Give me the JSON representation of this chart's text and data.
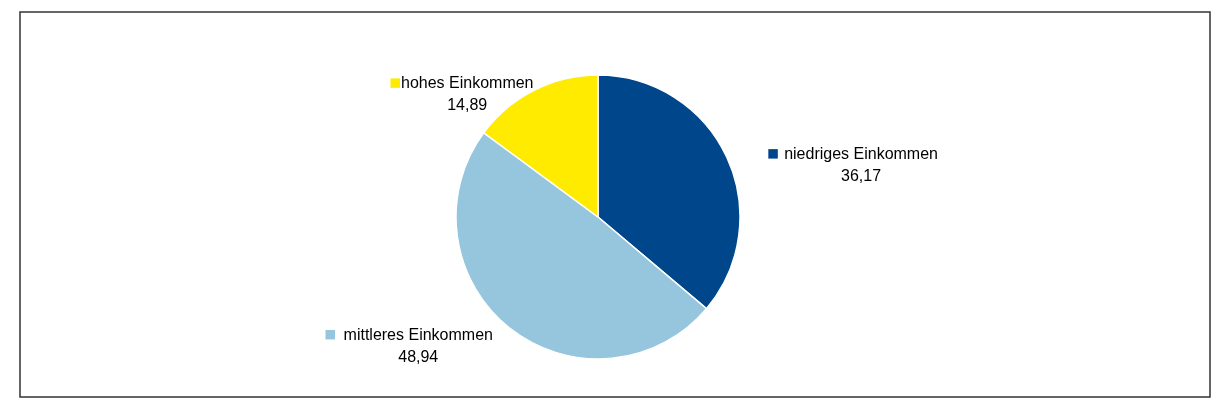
{
  "chart_data": {
    "type": "pie",
    "categories": [
      "niedriges Einkommen",
      "mittleres Einkommen",
      "hohes Einkommen"
    ],
    "values": [
      36.17,
      48.94,
      14.89
    ],
    "value_labels": [
      "36,17",
      "48,94",
      "14,89"
    ],
    "colors": [
      "#00468b",
      "#95c6de",
      "#ffeb00"
    ],
    "legend": "center"
  }
}
